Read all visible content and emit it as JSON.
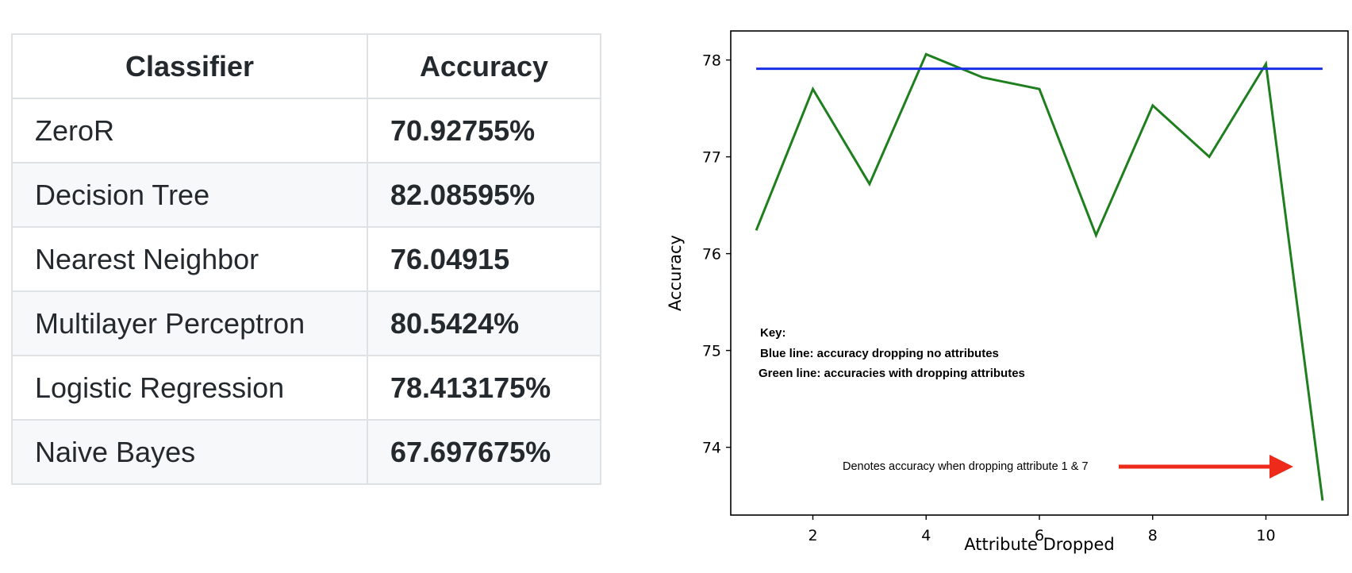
{
  "table": {
    "headers": [
      "Classifier",
      "Accuracy"
    ],
    "rows": [
      {
        "classifier": "ZeroR",
        "accuracy": "70.92755%"
      },
      {
        "classifier": "Decision Tree",
        "accuracy": "82.08595%"
      },
      {
        "classifier": "Nearest Neighbor",
        "accuracy": "76.04915"
      },
      {
        "classifier": "Multilayer Perceptron",
        "accuracy": "80.5424%"
      },
      {
        "classifier": "Logistic Regression",
        "accuracy": "78.413175%"
      },
      {
        "classifier": "Naive Bayes",
        "accuracy": "67.697675%"
      }
    ]
  },
  "chart_data": {
    "type": "line",
    "xlabel": "Attribute Dropped",
    "ylabel": "Accuracy",
    "xlim": [
      0.55,
      11.45
    ],
    "ylim": [
      73.3,
      78.3
    ],
    "xticks": [
      2,
      4,
      6,
      8,
      10
    ],
    "yticks": [
      74,
      75,
      76,
      77,
      78
    ],
    "grid": false,
    "series": [
      {
        "color": "#1f7f1f",
        "x": [
          1,
          2,
          3,
          4,
          5,
          6,
          7,
          8,
          9,
          10,
          11
        ],
        "y": [
          76.24,
          77.7,
          76.72,
          78.06,
          77.82,
          77.7,
          76.19,
          77.53,
          77.0,
          77.96,
          73.45
        ]
      },
      {
        "color": "#1a2ee8",
        "x": [
          1,
          11
        ],
        "y": [
          77.91,
          77.91
        ]
      }
    ],
    "annotations": {
      "key_title": "Key:",
      "key_blue": "Blue line: accuracy dropping no attributes",
      "key_green": "Green line: accuracies with dropping attributes",
      "arrow_note": "Denotes accuracy when dropping attribute 1 & 7",
      "arrow_color": "#ee2a1b"
    }
  }
}
